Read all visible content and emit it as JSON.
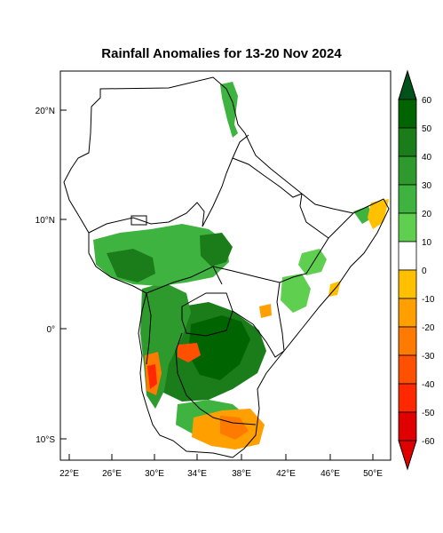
{
  "title": "Rainfall Anomalies for 13-20 Nov 2024",
  "map": {
    "lon_ticks": [
      "22°E",
      "26°E",
      "30°E",
      "34°E",
      "38°E",
      "42°E",
      "46°E",
      "50°E"
    ],
    "lat_ticks": [
      "20°N",
      "10°N",
      "0°",
      "10°S"
    ],
    "lon_range": [
      21,
      52
    ],
    "lat_range": [
      -12,
      23.5
    ]
  },
  "colorbar": {
    "labels": [
      "60",
      "50",
      "40",
      "30",
      "20",
      "10",
      "0",
      "-10",
      "-20",
      "-30",
      "-40",
      "-50",
      "-60"
    ],
    "colors": [
      "#006400",
      "#1a7d1a",
      "#2e9a2e",
      "#3fb33f",
      "#5fcf4f",
      "#ffffff",
      "#ffc000",
      "#ffa000",
      "#ff7a00",
      "#ff5000",
      "#ff2800",
      "#e00000"
    ],
    "top_arrow_color": "#00521a",
    "bottom_arrow_color": "#e00000"
  }
}
